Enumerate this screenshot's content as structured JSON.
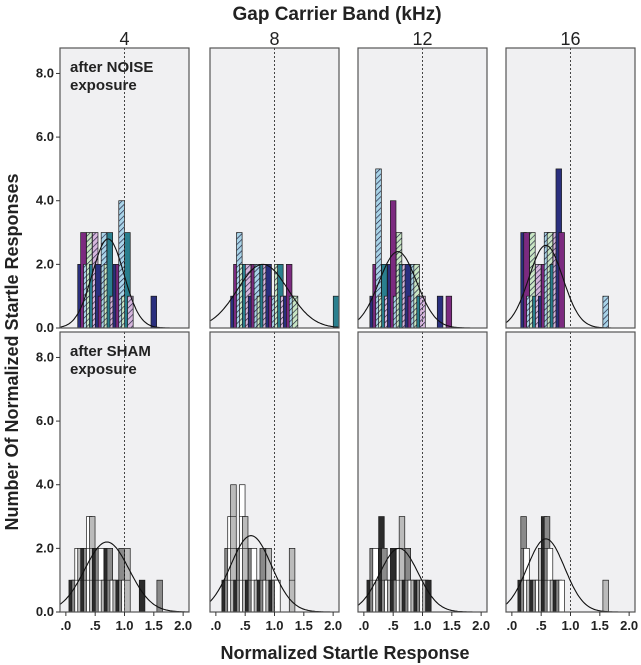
{
  "figure": {
    "title": "Gap Carrier Band (kHz)",
    "xlabel": "Normalized Startle Response",
    "ylabel": "Number Of Normalized Startle Responses"
  },
  "colors": {
    "panel_bg": "#f0f0f2",
    "frame": "#555555",
    "noise_palette": [
      "#2a2f7e",
      "#7c2a80",
      "#a9d4e8",
      "#c9e6c4",
      "#2a7f8e",
      "#d6b6dc"
    ],
    "sham_palette": [
      "#2b2b2b",
      "#8a8a8a",
      "#ffffff",
      "#bbbbbb"
    ]
  },
  "chart_data": [
    {
      "type": "bar",
      "row": "after NOISE exposure",
      "gap_band_khz": "4",
      "annotation": [
        "after NOISE",
        "exposure"
      ],
      "xlim": [
        -0.1,
        2.1
      ],
      "ylim": [
        0,
        8.8
      ],
      "ref_line_x": 1.0,
      "x": [
        0.25,
        0.3,
        0.35,
        0.4,
        0.45,
        0.5,
        0.55,
        0.6,
        0.65,
        0.7,
        0.75,
        0.8,
        0.85,
        0.9,
        0.95,
        1.0,
        1.05,
        1.1,
        1.5
      ],
      "values": [
        2,
        3,
        2,
        3,
        2,
        3,
        2,
        1,
        3,
        2,
        3,
        1,
        2,
        2,
        4,
        1,
        3,
        1,
        1
      ],
      "fit": {
        "mean": 0.72,
        "sd": 0.27,
        "peak": 2.8
      }
    },
    {
      "type": "bar",
      "row": "after NOISE exposure",
      "gap_band_khz": "8",
      "annotation": [],
      "xlim": [
        -0.1,
        2.1
      ],
      "ylim": [
        0,
        8.8
      ],
      "ref_line_x": 1.0,
      "x": [
        0.3,
        0.35,
        0.4,
        0.45,
        0.5,
        0.55,
        0.6,
        0.65,
        0.7,
        0.75,
        0.8,
        0.85,
        0.9,
        0.95,
        1.0,
        1.05,
        1.1,
        1.15,
        1.2,
        1.25,
        1.3,
        1.35,
        2.05
      ],
      "values": [
        1,
        2,
        3,
        2,
        2,
        2,
        1,
        2,
        2,
        1,
        2,
        2,
        2,
        1,
        1,
        2,
        2,
        1,
        1,
        2,
        1,
        1,
        1
      ],
      "fit": {
        "mean": 0.8,
        "sd": 0.43,
        "peak": 2.0
      }
    },
    {
      "type": "bar",
      "row": "after NOISE exposure",
      "gap_band_khz": "12",
      "annotation": [],
      "xlim": [
        -0.1,
        2.1
      ],
      "ylim": [
        0,
        8.8
      ],
      "ref_line_x": 1.0,
      "x": [
        0.15,
        0.2,
        0.25,
        0.3,
        0.35,
        0.4,
        0.45,
        0.5,
        0.55,
        0.6,
        0.65,
        0.7,
        0.75,
        0.8,
        0.85,
        0.9,
        0.95,
        1.0,
        1.3,
        1.45
      ],
      "values": [
        1,
        2,
        5,
        1,
        2,
        1,
        2,
        4,
        1,
        3,
        2,
        2,
        2,
        1,
        2,
        2,
        1,
        1,
        1,
        1
      ],
      "fit": {
        "mean": 0.58,
        "sd": 0.32,
        "peak": 2.4
      }
    },
    {
      "type": "bar",
      "row": "after NOISE exposure",
      "gap_band_khz": "16",
      "annotation": [],
      "xlim": [
        -0.1,
        2.1
      ],
      "ylim": [
        0,
        8.8
      ],
      "ref_line_x": 1.0,
      "x": [
        0.2,
        0.25,
        0.3,
        0.35,
        0.4,
        0.45,
        0.5,
        0.55,
        0.6,
        0.65,
        0.7,
        0.75,
        0.8,
        0.85,
        1.6
      ],
      "values": [
        3,
        3,
        1,
        3,
        1,
        2,
        1,
        2,
        3,
        3,
        2,
        3,
        5,
        3,
        1
      ],
      "fit": {
        "mean": 0.58,
        "sd": 0.29,
        "peak": 2.6
      }
    },
    {
      "type": "bar",
      "row": "after SHAM exposure",
      "gap_band_khz": "4",
      "annotation": [
        "after SHAM",
        "exposure"
      ],
      "xlim": [
        -0.1,
        2.1
      ],
      "ylim": [
        0,
        8.8
      ],
      "ref_line_x": 1.0,
      "x": [
        0.1,
        0.15,
        0.2,
        0.25,
        0.3,
        0.35,
        0.4,
        0.45,
        0.5,
        0.55,
        0.6,
        0.65,
        0.7,
        0.75,
        0.8,
        0.85,
        0.9,
        0.95,
        1.0,
        1.05,
        1.3,
        1.6
      ],
      "values": [
        1,
        1,
        2,
        2,
        2,
        2,
        3,
        3,
        2,
        2,
        2,
        1,
        2,
        2,
        1,
        1,
        1,
        2,
        1,
        2,
        1,
        1
      ],
      "fit": {
        "mean": 0.7,
        "sd": 0.38,
        "peak": 2.2
      }
    },
    {
      "type": "bar",
      "row": "after SHAM exposure",
      "gap_band_khz": "8",
      "annotation": [],
      "xlim": [
        -0.1,
        2.1
      ],
      "ylim": [
        0,
        8.8
      ],
      "ref_line_x": 1.0,
      "x": [
        0.15,
        0.2,
        0.25,
        0.3,
        0.35,
        0.4,
        0.45,
        0.5,
        0.55,
        0.6,
        0.65,
        0.7,
        0.75,
        0.8,
        0.85,
        0.9,
        0.95,
        1.0,
        1.05,
        1.3
      ],
      "values": [
        1,
        2,
        3,
        4,
        1,
        2,
        4,
        3,
        1,
        2,
        2,
        1,
        1,
        2,
        1,
        2,
        1,
        1,
        1,
        2
      ],
      "fit": {
        "mean": 0.6,
        "sd": 0.35,
        "peak": 2.4
      }
    },
    {
      "type": "bar",
      "row": "after SHAM exposure",
      "gap_band_khz": "12",
      "annotation": [],
      "xlim": [
        -0.1,
        2.1
      ],
      "ylim": [
        0,
        8.8
      ],
      "ref_line_x": 1.0,
      "x": [
        0.1,
        0.15,
        0.2,
        0.25,
        0.3,
        0.35,
        0.4,
        0.45,
        0.5,
        0.55,
        0.6,
        0.65,
        0.7,
        0.75,
        0.8,
        0.85,
        0.9,
        0.95,
        1.0,
        1.05,
        1.1
      ],
      "values": [
        1,
        2,
        2,
        1,
        3,
        2,
        1,
        1,
        2,
        1,
        2,
        3,
        1,
        2,
        1,
        1,
        1,
        1,
        1,
        1,
        1
      ],
      "fit": {
        "mean": 0.6,
        "sd": 0.33,
        "peak": 2.0
      }
    },
    {
      "type": "bar",
      "row": "after SHAM exposure",
      "gap_band_khz": "16",
      "annotation": [],
      "xlim": [
        -0.1,
        2.1
      ],
      "ylim": [
        0,
        8.8
      ],
      "ref_line_x": 1.0,
      "x": [
        0.15,
        0.2,
        0.25,
        0.3,
        0.35,
        0.4,
        0.45,
        0.5,
        0.55,
        0.6,
        0.65,
        0.7,
        0.75,
        0.8,
        0.85,
        1.6
      ],
      "values": [
        1,
        3,
        2,
        1,
        1,
        1,
        1,
        2,
        3,
        3,
        2,
        1,
        1,
        1,
        1,
        1
      ],
      "fit": {
        "mean": 0.58,
        "sd": 0.32,
        "peak": 2.3
      }
    }
  ],
  "axes": {
    "yticks": [
      0,
      2,
      4,
      6,
      8
    ],
    "ytick_labels": [
      "0.0",
      "2.0",
      "4.0",
      "6.0",
      "8.0"
    ],
    "xticks": [
      0,
      0.5,
      1.0,
      1.5,
      2.0
    ],
    "xtick_labels": [
      ".0",
      ".5",
      "1.0",
      "1.5",
      "2.0"
    ]
  }
}
